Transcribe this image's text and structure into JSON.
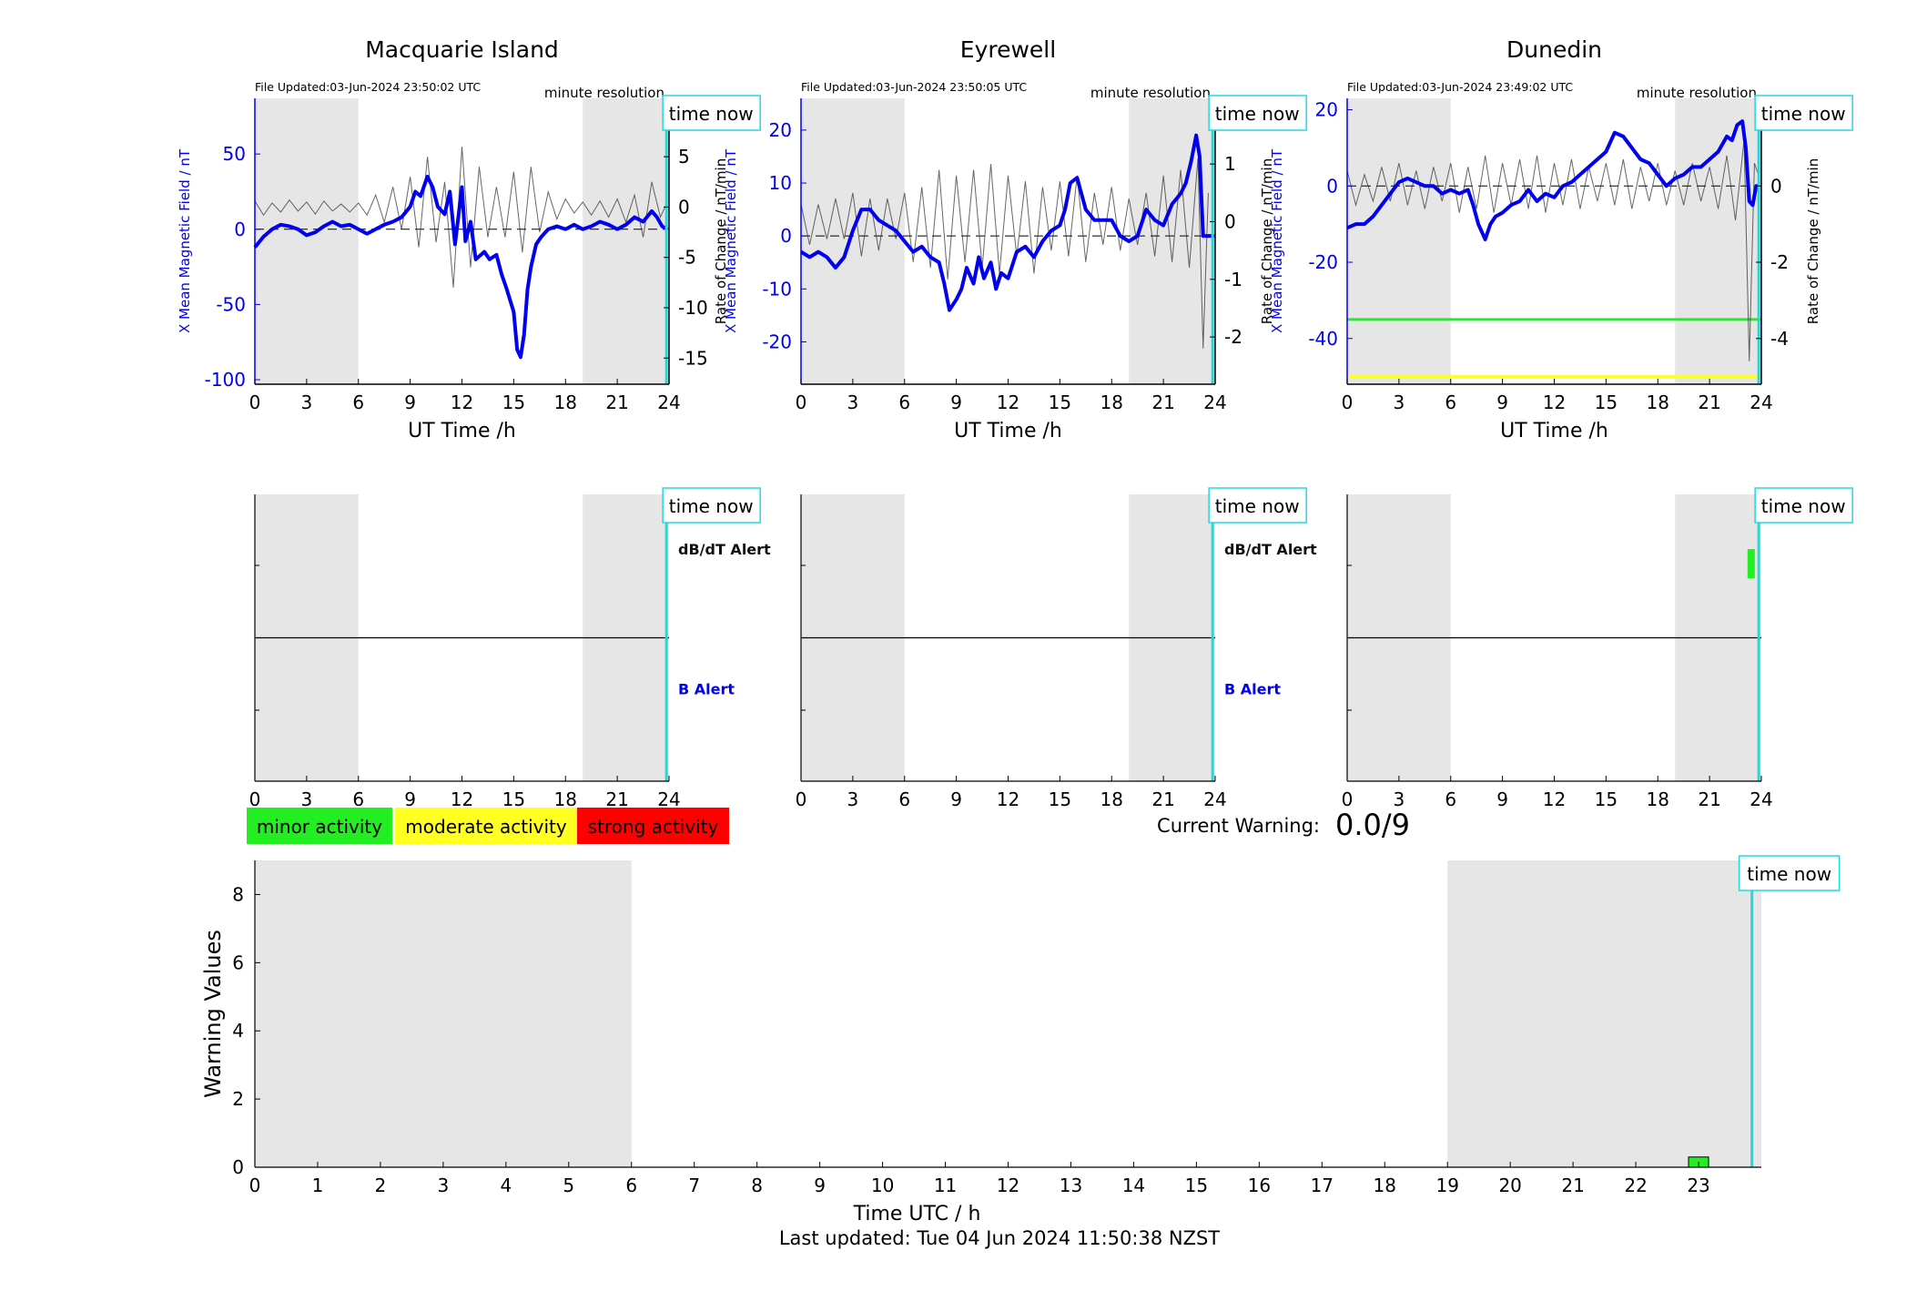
{
  "colors": {
    "mag_line": "#0000ee",
    "rate_line": "#333333",
    "shade": "#e6e6e6",
    "time_now": "#22d8e0",
    "minor": "#22ee22",
    "moderate": "#ffff22",
    "strong": "#ff0000"
  },
  "legend": {
    "minor": "minor activity",
    "moderate": "moderate activity",
    "strong": "strong activity"
  },
  "labels": {
    "time_now": "time now",
    "minute_resolution": "minute resolution",
    "ut_time": "UT Time /h",
    "ylabel_left": "X Mean Magnetic Field / nT",
    "ylabel_right": "Rate of Change / nT/min",
    "dbdt_alert": "dB/dT Alert",
    "b_alert": "B Alert",
    "current_warning_label": "Current Warning:",
    "current_warning_value": "0.0/9",
    "last_updated": "Last updated: Tue 04 Jun 2024 11:50:38 NZST"
  },
  "chart_data": [
    {
      "type": "line",
      "title": "Macquarie Island",
      "file_updated": "File Updated:03-Jun-2024 23:50:02 UTC",
      "xlabel": "UT Time /h",
      "ylabel": "X Mean Magnetic Field / nT",
      "ylabel_right": "Rate of Change / nT/min",
      "xlim": [
        0,
        24
      ],
      "ylim": [
        -103,
        87
      ],
      "ylim_right": [
        -17.6,
        10.8
      ],
      "xticks": [
        0,
        3,
        6,
        9,
        12,
        15,
        18,
        21,
        24
      ],
      "yticks": [
        -100,
        -50,
        0,
        50
      ],
      "yticks_right": [
        -15,
        -10,
        -5,
        0,
        5,
        10
      ],
      "shaded_x": [
        [
          0,
          6
        ],
        [
          19,
          24
        ]
      ],
      "time_now": 23.85,
      "thresholds": [],
      "series": [
        {
          "role": "mean-field",
          "x": [
            0,
            0.5,
            1,
            1.5,
            2,
            2.5,
            3,
            3.5,
            4,
            4.5,
            5,
            5.5,
            6,
            6.5,
            7,
            7.5,
            8,
            8.5,
            9,
            9.3,
            9.6,
            10,
            10.3,
            10.6,
            11,
            11.3,
            11.6,
            12,
            12.2,
            12.5,
            12.8,
            13,
            13.3,
            13.6,
            14,
            14.3,
            14.6,
            15,
            15.2,
            15.4,
            15.6,
            15.8,
            16,
            16.3,
            16.6,
            17,
            17.5,
            18,
            18.5,
            19,
            19.5,
            20,
            20.5,
            21,
            21.5,
            22,
            22.5,
            23,
            23.3,
            23.6,
            23.9
          ],
          "y": [
            -12,
            -5,
            0,
            3,
            2,
            0,
            -4,
            -2,
            2,
            5,
            2,
            3,
            0,
            -3,
            0,
            3,
            5,
            8,
            15,
            25,
            22,
            35,
            28,
            15,
            10,
            25,
            -10,
            28,
            -8,
            5,
            -20,
            -18,
            -15,
            -20,
            -17,
            -30,
            -40,
            -55,
            -80,
            -85,
            -70,
            -40,
            -25,
            -10,
            -5,
            0,
            2,
            0,
            3,
            0,
            2,
            5,
            3,
            0,
            3,
            8,
            5,
            12,
            8,
            2,
            0
          ]
        },
        {
          "role": "rate-of-change",
          "x": [
            0,
            0.5,
            1,
            1.5,
            2,
            2.5,
            3,
            3.5,
            4,
            4.5,
            5,
            5.5,
            6,
            6.5,
            7,
            7.5,
            8,
            8.5,
            9,
            9.5,
            10,
            10.5,
            11,
            11.5,
            12,
            12.5,
            13,
            13.5,
            14,
            14.5,
            15,
            15.5,
            16,
            16.5,
            17,
            17.5,
            18,
            18.5,
            19,
            19.5,
            20,
            20.5,
            21,
            21.5,
            22,
            22.5,
            23,
            23.5,
            23.9
          ],
          "y": [
            0.6,
            -0.8,
            0.4,
            -0.5,
            0.7,
            -0.4,
            0.5,
            -0.7,
            0.6,
            -0.4,
            0.3,
            -0.5,
            0.4,
            -0.8,
            1.2,
            -1.5,
            2.0,
            -2.2,
            3.0,
            -4.0,
            5.0,
            -3.5,
            2.5,
            -8.0,
            6.0,
            -6.0,
            4.0,
            -3.0,
            2.0,
            -3.0,
            3.5,
            -4.5,
            4.0,
            -2.5,
            1.5,
            -1.2,
            0.8,
            -0.6,
            0.5,
            -0.8,
            0.6,
            -1.0,
            0.8,
            -1.5,
            1.2,
            -3.0,
            2.5,
            -1.0,
            0.5
          ]
        }
      ],
      "alerts": {
        "labels": [
          "dB/dT Alert",
          "B Alert"
        ],
        "xlim": [
          0,
          24
        ],
        "xticks": [
          0,
          3,
          6,
          9,
          12,
          15,
          18,
          21,
          24
        ],
        "shaded_x": [
          [
            0,
            6
          ],
          [
            19,
            24
          ]
        ],
        "time_now": 23.85,
        "bars": []
      }
    },
    {
      "type": "line",
      "title": "Eyrewell",
      "file_updated": "File Updated:03-Jun-2024 23:50:05 UTC",
      "xlabel": "UT Time /h",
      "ylabel": "X Mean Magnetic Field / nT",
      "ylabel_right": "Rate of Change / nT/min",
      "xlim": [
        0,
        24
      ],
      "ylim": [
        -28,
        26
      ],
      "ylim_right": [
        -2.82,
        2.14
      ],
      "xticks": [
        0,
        3,
        6,
        9,
        12,
        15,
        18,
        21,
        24
      ],
      "yticks": [
        -20,
        -10,
        0,
        10,
        20
      ],
      "yticks_right": [
        -2,
        -1,
        0,
        1,
        2
      ],
      "shaded_x": [
        [
          0,
          6
        ],
        [
          19,
          24
        ]
      ],
      "time_now": 23.85,
      "thresholds": [],
      "series": [
        {
          "role": "mean-field",
          "x": [
            0,
            0.5,
            1,
            1.5,
            2,
            2.5,
            3,
            3.5,
            4,
            4.5,
            5,
            5.5,
            6,
            6.5,
            7,
            7.5,
            8,
            8.3,
            8.6,
            9,
            9.3,
            9.6,
            10,
            10.3,
            10.6,
            11,
            11.3,
            11.6,
            12,
            12.5,
            13,
            13.5,
            14,
            14.5,
            15,
            15.3,
            15.6,
            16,
            16.5,
            17,
            17.5,
            18,
            18.5,
            19,
            19.5,
            20,
            20.5,
            21,
            21.5,
            22,
            22.3,
            22.6,
            22.9,
            23.1,
            23.3,
            23.5,
            23.8,
            24
          ],
          "y": [
            -3,
            -4,
            -3,
            -4,
            -6,
            -4,
            1,
            5,
            5,
            3,
            2,
            1,
            -1,
            -3,
            -2,
            -4,
            -5,
            -9,
            -14,
            -12,
            -10,
            -6,
            -9,
            -4,
            -8,
            -5,
            -10,
            -7,
            -8,
            -3,
            -2,
            -4,
            -1,
            1,
            2,
            5,
            10,
            11,
            5,
            3,
            3,
            3,
            0,
            -1,
            0,
            5,
            3,
            2,
            6,
            8,
            10,
            14,
            19,
            15,
            0,
            0,
            0,
            0
          ]
        },
        {
          "role": "rate-of-change",
          "x": [
            0,
            0.5,
            1,
            1.5,
            2,
            2.5,
            3,
            3.5,
            4,
            4.5,
            5,
            5.5,
            6,
            6.5,
            7,
            7.5,
            8,
            8.5,
            9,
            9.5,
            10,
            10.5,
            11,
            11.5,
            12,
            12.5,
            13,
            13.5,
            14,
            14.5,
            15,
            15.5,
            16,
            16.5,
            17,
            17.5,
            18,
            18.5,
            19,
            19.5,
            20,
            20.5,
            21,
            21.5,
            22,
            22.5,
            23,
            23.3,
            23.6
          ],
          "y": [
            0.3,
            -0.4,
            0.3,
            -0.3,
            0.4,
            -0.3,
            0.5,
            -0.6,
            0.4,
            -0.5,
            0.4,
            -0.3,
            0.5,
            -0.7,
            0.6,
            -0.8,
            0.9,
            -1.0,
            0.8,
            -0.7,
            0.9,
            -0.8,
            1.0,
            -0.9,
            0.8,
            -0.6,
            0.7,
            -0.9,
            0.6,
            -0.5,
            0.7,
            -0.6,
            0.8,
            -0.7,
            0.5,
            -0.4,
            0.6,
            -0.5,
            0.4,
            -0.4,
            0.5,
            -0.6,
            0.8,
            -0.7,
            0.9,
            -0.8,
            1.1,
            -2.2,
            0.5
          ]
        }
      ],
      "alerts": {
        "labels": [
          "dB/dT Alert",
          "B Alert"
        ],
        "xlim": [
          0,
          24
        ],
        "xticks": [
          0,
          3,
          6,
          9,
          12,
          15,
          18,
          21,
          24
        ],
        "shaded_x": [
          [
            0,
            6
          ],
          [
            19,
            24
          ]
        ],
        "time_now": 23.85,
        "bars": []
      }
    },
    {
      "type": "line",
      "title": "Dunedin",
      "file_updated": "File Updated:03-Jun-2024 23:49:02 UTC",
      "xlabel": "UT Time /h",
      "ylabel": "X Mean Magnetic Field / nT",
      "ylabel_right": "Rate of Change / nT/min",
      "xlim": [
        0,
        24
      ],
      "ylim": [
        -52,
        23
      ],
      "ylim_right": [
        -5.2,
        2.3
      ],
      "xticks": [
        0,
        3,
        6,
        9,
        12,
        15,
        18,
        21,
        24
      ],
      "yticks": [
        -40,
        -20,
        0,
        20
      ],
      "yticks_right": [
        -4,
        -2,
        0,
        2
      ],
      "shaded_x": [
        [
          0,
          6
        ],
        [
          19,
          24
        ]
      ],
      "time_now": 23.85,
      "thresholds": [
        {
          "value": -35,
          "color": "#22ee22"
        },
        {
          "value": -50,
          "color": "#ffff22"
        }
      ],
      "series": [
        {
          "role": "mean-field",
          "x": [
            0,
            0.5,
            1,
            1.5,
            2,
            2.5,
            3,
            3.5,
            4,
            4.5,
            5,
            5.5,
            6,
            6.5,
            7,
            7.3,
            7.6,
            8,
            8.3,
            8.6,
            9,
            9.5,
            10,
            10.5,
            11,
            11.5,
            12,
            12.5,
            13,
            13.5,
            14,
            14.5,
            15,
            15.5,
            16,
            16.5,
            17,
            17.5,
            18,
            18.5,
            19,
            19.5,
            20,
            20.5,
            21,
            21.5,
            22,
            22.3,
            22.6,
            22.9,
            23.1,
            23.3,
            23.5,
            23.7,
            23.9
          ],
          "y": [
            -11,
            -10,
            -10,
            -8,
            -5,
            -2,
            1,
            2,
            1,
            0,
            0,
            -2,
            -1,
            -2,
            -1,
            -5,
            -10,
            -14,
            -10,
            -8,
            -7,
            -5,
            -4,
            -1,
            -4,
            -2,
            -3,
            0,
            1,
            3,
            5,
            7,
            9,
            14,
            13,
            10,
            7,
            6,
            3,
            0,
            2,
            3,
            5,
            5,
            7,
            9,
            13,
            12,
            16,
            17,
            10,
            -4,
            -5,
            0,
            0
          ]
        },
        {
          "role": "rate-of-change",
          "x": [
            0,
            0.5,
            1,
            1.5,
            2,
            2.5,
            3,
            3.5,
            4,
            4.5,
            5,
            5.5,
            6,
            6.5,
            7,
            7.5,
            8,
            8.5,
            9,
            9.5,
            10,
            10.5,
            11,
            11.5,
            12,
            12.5,
            13,
            13.5,
            14,
            14.5,
            15,
            15.5,
            16,
            16.5,
            17,
            17.5,
            18,
            18.5,
            19,
            19.5,
            20,
            20.5,
            21,
            21.5,
            22,
            22.5,
            23,
            23.3,
            23.6,
            23.9
          ],
          "y": [
            0.4,
            -0.5,
            0.3,
            -0.4,
            0.5,
            -0.4,
            0.6,
            -0.5,
            0.4,
            -0.6,
            0.5,
            -0.4,
            0.6,
            -0.7,
            0.5,
            -0.6,
            0.8,
            -0.7,
            0.6,
            -0.5,
            0.7,
            -0.6,
            0.8,
            -0.7,
            0.6,
            -0.5,
            0.7,
            -0.6,
            0.5,
            -0.4,
            0.6,
            -0.5,
            0.7,
            -0.6,
            0.5,
            -0.4,
            0.6,
            -0.5,
            0.4,
            -0.5,
            0.6,
            -0.4,
            0.5,
            -0.6,
            0.8,
            -0.9,
            1.2,
            -4.6,
            0.6,
            0.2
          ]
        }
      ],
      "alerts": {
        "labels": [],
        "xlim": [
          0,
          24
        ],
        "xticks": [
          0,
          3,
          6,
          9,
          12,
          15,
          18,
          21,
          24
        ],
        "shaded_x": [
          [
            0,
            6
          ],
          [
            19,
            24
          ]
        ],
        "time_now": 23.85,
        "bars": [
          {
            "x": 23.2,
            "level": "dbdt",
            "color": "#22ee22"
          }
        ]
      }
    },
    {
      "type": "bar",
      "title": "",
      "xlabel": "Time UTC / h",
      "ylabel": "Warning Values",
      "xlim": [
        0,
        24
      ],
      "ylim": [
        0,
        9
      ],
      "xticks": [
        0,
        1,
        2,
        3,
        4,
        5,
        6,
        7,
        8,
        9,
        10,
        11,
        12,
        13,
        14,
        15,
        16,
        17,
        18,
        19,
        20,
        21,
        22,
        23
      ],
      "yticks": [
        0,
        2,
        4,
        6,
        8
      ],
      "shaded_x": [
        [
          0,
          6
        ],
        [
          19,
          24
        ]
      ],
      "time_now": 23.85,
      "bars": [
        {
          "x": 23,
          "value": 0.3,
          "color": "#22ee22"
        }
      ]
    }
  ]
}
